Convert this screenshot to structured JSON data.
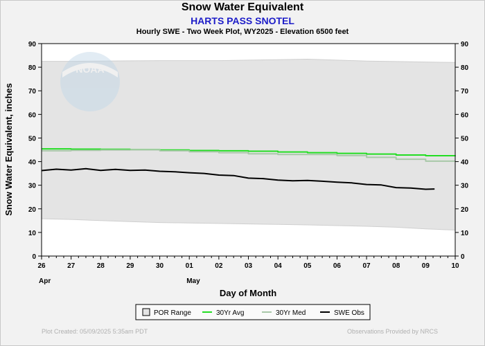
{
  "title": "Snow Water Equivalent",
  "station": "HARTS PASS SNOTEL",
  "subtitle": "Hourly SWE - Two Week Plot, WY2025 -  Elevation 6500 feet",
  "footer": {
    "created": "Plot Created: 05/09/2025 5:35am PDT",
    "credit": "Observations Provided by NRCS"
  },
  "logo_text": "NOAA",
  "chart_data": {
    "type": "line",
    "xlabel": "Day of Month",
    "ylabel": "Snow Water Equivalent, inches",
    "ylim": [
      0,
      90
    ],
    "yticks": [
      0,
      10,
      20,
      30,
      40,
      50,
      60,
      70,
      80,
      90
    ],
    "xlim": [
      0,
      14
    ],
    "x_tick_labels": [
      "26",
      "27",
      "28",
      "29",
      "30",
      "01",
      "02",
      "03",
      "04",
      "05",
      "06",
      "07",
      "08",
      "09",
      "10"
    ],
    "month_labels": [
      {
        "x": 0,
        "label": "Apr"
      },
      {
        "x": 5,
        "label": "May"
      }
    ],
    "grid": false,
    "legend_position": "bottom-center",
    "por_range": {
      "name": "POR Range",
      "color": "#e4e4e4",
      "x": [
        0,
        1,
        2,
        3,
        4,
        5,
        6,
        7,
        8,
        9,
        10,
        11,
        12,
        13,
        14
      ],
      "low": [
        15.8,
        15.5,
        15.0,
        14.6,
        14.2,
        14.0,
        13.8,
        13.6,
        13.4,
        13.2,
        12.9,
        12.6,
        12.2,
        11.5,
        11.0
      ],
      "high": [
        82.5,
        82.5,
        82.6,
        82.7,
        82.8,
        82.8,
        82.8,
        83.0,
        83.2,
        83.4,
        83.0,
        82.6,
        82.4,
        82.2,
        82.0
      ]
    },
    "series": [
      {
        "name": "30Yr Avg",
        "color": "#22dd22",
        "x": [
          0,
          1,
          2,
          3,
          4,
          5,
          6,
          7,
          8,
          9,
          10,
          11,
          12,
          13,
          14
        ],
        "values": [
          45.4,
          45.3,
          45.2,
          45.1,
          44.9,
          44.7,
          44.6,
          44.4,
          44.1,
          43.8,
          43.5,
          43.2,
          42.8,
          42.5,
          42.3
        ]
      },
      {
        "name": "30Yr Med",
        "color": "#a8c8a8",
        "x": [
          0,
          1,
          2,
          3,
          4,
          5,
          6,
          7,
          8,
          9,
          10,
          11,
          12,
          13,
          14
        ],
        "values": [
          44.6,
          44.8,
          44.9,
          45.0,
          44.6,
          44.2,
          43.8,
          43.3,
          43.0,
          43.0,
          42.6,
          41.8,
          41.0,
          40.2,
          40.2
        ]
      },
      {
        "name": "SWE Obs",
        "color": "#000000",
        "x": [
          0,
          0.5,
          1,
          1.5,
          2,
          2.5,
          3,
          3.5,
          4,
          4.5,
          5,
          5.5,
          6,
          6.5,
          7,
          7.5,
          8,
          8.5,
          9,
          9.5,
          10,
          10.5,
          11,
          11.5,
          12,
          12.5,
          13,
          13.3
        ],
        "values": [
          36.2,
          36.8,
          36.4,
          37.0,
          36.3,
          36.7,
          36.3,
          36.4,
          35.9,
          35.7,
          35.3,
          35.0,
          34.3,
          34.1,
          33.0,
          32.8,
          32.2,
          31.9,
          32.0,
          31.7,
          31.3,
          31.0,
          30.3,
          30.1,
          29.0,
          28.8,
          28.3,
          28.4
        ]
      }
    ]
  }
}
